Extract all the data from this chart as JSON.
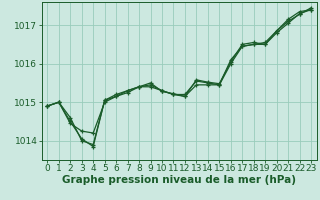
{
  "xlabel": "Graphe pression niveau de la mer (hPa)",
  "background_color": "#cce8e0",
  "grid_color": "#99ccbb",
  "line_color": "#1a5c2a",
  "series": [
    [
      1014.9,
      1015.0,
      1014.6,
      1014.0,
      1013.9,
      1015.05,
      1015.15,
      1015.25,
      1015.4,
      1015.45,
      1015.3,
      1015.2,
      1015.2,
      1015.55,
      1015.5,
      1015.45,
      1016.0,
      1016.45,
      1016.5,
      1016.5,
      1016.8,
      1017.05,
      1017.3,
      1017.4
    ],
    [
      1014.9,
      1015.0,
      1014.45,
      1014.25,
      1014.2,
      1015.0,
      1015.15,
      1015.3,
      1015.4,
      1015.4,
      1015.3,
      1015.2,
      1015.15,
      1015.45,
      1015.45,
      1015.45,
      1016.1,
      1016.45,
      1016.5,
      1016.55,
      1016.85,
      1017.15,
      1017.35,
      1017.4
    ],
    [
      1014.9,
      1015.0,
      1014.5,
      1014.05,
      1013.85,
      1015.05,
      1015.2,
      1015.3,
      1015.4,
      1015.5,
      1015.28,
      1015.22,
      1015.15,
      1015.58,
      1015.52,
      1015.48,
      1016.05,
      1016.5,
      1016.55,
      1016.5,
      1016.85,
      1017.1,
      1017.28,
      1017.45
    ]
  ],
  "ylim": [
    1013.5,
    1017.6
  ],
  "xlim": [
    -0.5,
    23.5
  ],
  "yticks": [
    1014,
    1015,
    1016,
    1017
  ],
  "xticks": [
    0,
    1,
    2,
    3,
    4,
    5,
    6,
    7,
    8,
    9,
    10,
    11,
    12,
    13,
    14,
    15,
    16,
    17,
    18,
    19,
    20,
    21,
    22,
    23
  ],
  "xtick_labels": [
    "0",
    "1",
    "2",
    "3",
    "4",
    "5",
    "6",
    "7",
    "8",
    "9",
    "10",
    "11",
    "12",
    "13",
    "14",
    "15",
    "16",
    "17",
    "18",
    "19",
    "20",
    "21",
    "22",
    "23"
  ],
  "xlabel_fontsize": 7.5,
  "tick_fontsize": 6.5
}
